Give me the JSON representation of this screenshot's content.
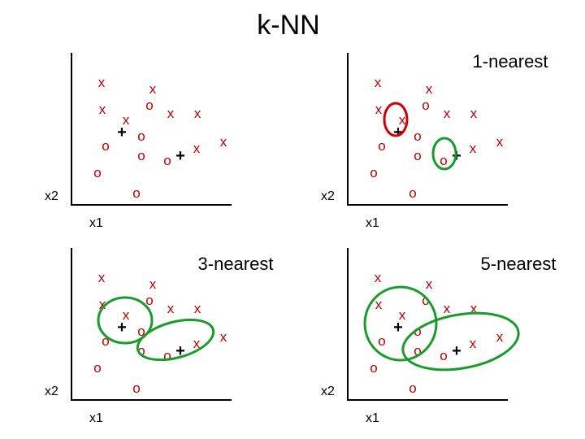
{
  "title": "k-NN",
  "panels": [
    {
      "title": "",
      "xlabel": "x1",
      "ylabel": "x2"
    },
    {
      "title": "1-nearest",
      "xlabel": "x1",
      "ylabel": "x2"
    },
    {
      "title": "3-nearest",
      "xlabel": "x1",
      "ylabel": "x2"
    },
    {
      "title": "5-nearest",
      "xlabel": "x1",
      "ylabel": "x2"
    }
  ],
  "symbols": {
    "x_class": "x",
    "o_class": "o",
    "query": "+"
  },
  "colors": {
    "points": "#c00000",
    "neighborhood": "#1a9c2a",
    "nearest_1": "#d00000",
    "axis": "#000000"
  }
}
